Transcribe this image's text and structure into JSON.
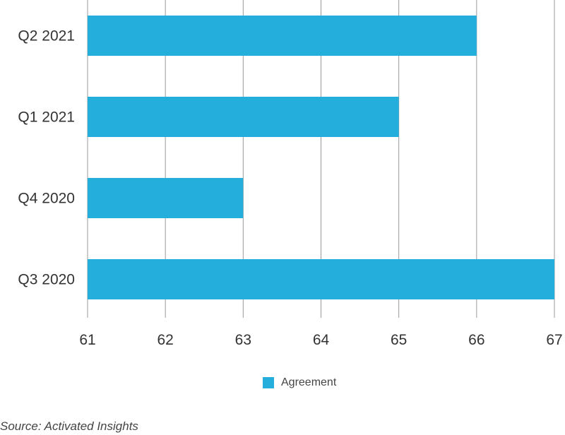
{
  "chart_data": {
    "type": "bar",
    "orientation": "horizontal",
    "categories": [
      "Q2 2021",
      "Q1 2021",
      "Q4 2020",
      "Q3 2020"
    ],
    "series": [
      {
        "name": "Agreement",
        "values": [
          66,
          65,
          63,
          67
        ],
        "color": "#23AEDB"
      }
    ],
    "xlim": [
      61,
      67
    ],
    "xticks": [
      "61",
      "62",
      "63",
      "64",
      "65",
      "66",
      "67"
    ],
    "grid": "vertical",
    "legend_position": "bottom-center"
  },
  "legend": {
    "label": "Agreement",
    "color": "#23AEDB"
  },
  "source_text": "Source: Activated Insights"
}
